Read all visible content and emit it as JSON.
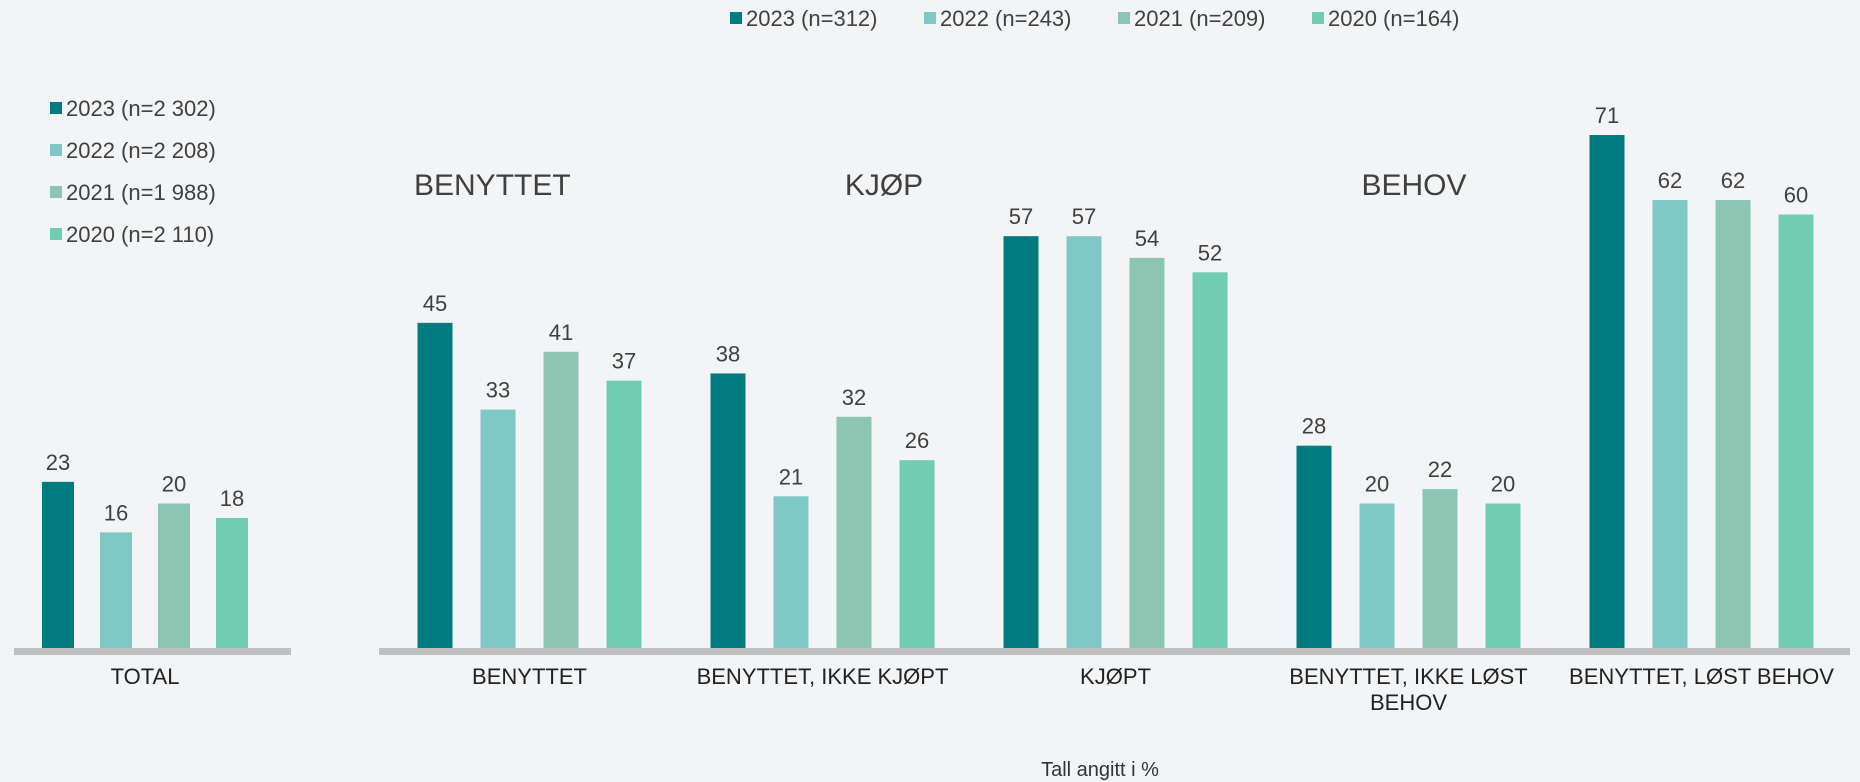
{
  "chart_data": [
    {
      "type": "bar",
      "categories": [
        "TOTAL"
      ],
      "series": [
        {
          "name": "2023 (n=2 302)",
          "color": "#007c80",
          "values": [
            23
          ]
        },
        {
          "name": "2022 (n=2 208)",
          "color": "#7fc8c6",
          "values": [
            16
          ]
        },
        {
          "name": "2021 (n=1 988)",
          "color": "#8cc6b2",
          "values": [
            20
          ]
        },
        {
          "name": "2020 (n=2 110)",
          "color": "#72cdb0",
          "values": [
            18
          ]
        }
      ],
      "ylim": [
        0,
        80
      ],
      "legend": "top-left"
    },
    {
      "type": "bar",
      "categories": [
        "BENYTTET",
        "BENYTTET, IKKE KJØPT",
        "KJØPT",
        "BENYTTET, IKKE LØST BEHOV",
        "BENYTTET, LØST BEHOV"
      ],
      "series": [
        {
          "name": "2023 (n=312)",
          "color": "#007c80",
          "values": [
            45,
            38,
            57,
            28,
            71
          ]
        },
        {
          "name": "2022 (n=243)",
          "color": "#7fc8c6",
          "values": [
            33,
            21,
            57,
            20,
            62
          ]
        },
        {
          "name": "2021 (n=209)",
          "color": "#8cc6b2",
          "values": [
            41,
            32,
            54,
            22,
            62
          ]
        },
        {
          "name": "2020 (n=164)",
          "color": "#72cdb0",
          "values": [
            37,
            26,
            52,
            20,
            60
          ]
        }
      ],
      "annotations": [
        "BENYTTET",
        "KJØP",
        "BEHOV"
      ],
      "ylim": [
        0,
        80
      ],
      "legend": "top"
    }
  ],
  "footnote": "Tall angitt i %"
}
